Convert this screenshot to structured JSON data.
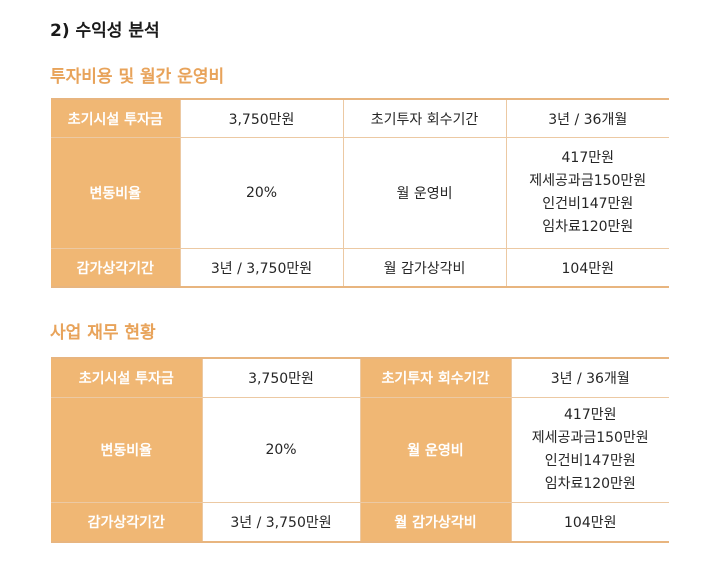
{
  "heading": "2) 수익성 분석",
  "subheading1": "투자비용 및 월간 운영비",
  "subheading2": "사업 재무 현황",
  "table": {
    "labels": {
      "init_invest": "초기시설 투자금",
      "payback": "초기투자 회수기간",
      "variable_rate": "변동비율",
      "monthly_cost": "월 운영비",
      "depreciation_period": "감가상각기간",
      "monthly_depreciation": "월 감가상각비"
    },
    "values": {
      "init_invest": "3,750만원",
      "payback": "3년 / 36개월",
      "variable_rate": "20%",
      "monthly_cost_lines": [
        "417만원",
        "제세공과금150만원",
        "인건비147만원",
        "임차료120만원"
      ],
      "depreciation_period": "3년 / 3,750만원",
      "monthly_depreciation": "104만원"
    }
  }
}
